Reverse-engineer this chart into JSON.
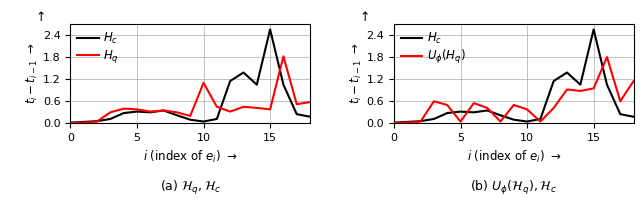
{
  "plot1": {
    "x": [
      0,
      1,
      2,
      3,
      4,
      5,
      6,
      7,
      8,
      9,
      10,
      11,
      12,
      13,
      14,
      15,
      16,
      17,
      18
    ],
    "Hc": [
      0.02,
      0.04,
      0.06,
      0.12,
      0.28,
      0.32,
      0.3,
      0.35,
      0.22,
      0.1,
      0.05,
      0.12,
      1.15,
      1.38,
      1.05,
      2.55,
      1.05,
      0.25,
      0.18
    ],
    "Hq": [
      0.01,
      0.02,
      0.05,
      0.3,
      0.4,
      0.38,
      0.32,
      0.35,
      0.3,
      0.2,
      1.1,
      0.45,
      0.32,
      0.45,
      0.42,
      0.38,
      1.82,
      0.52,
      0.58
    ],
    "legend1": "$H_c$",
    "legend2": "$H_q$",
    "xlabel": "$i$ (index of $e_i$) $\\rightarrow$",
    "caption": "(a) $\\mathcal{H}_q, \\mathcal{H}_c$",
    "ylim": [
      0,
      2.7
    ],
    "yticks": [
      0.0,
      0.6,
      1.2,
      1.8,
      2.4
    ],
    "xticks": [
      0,
      5,
      10,
      15
    ]
  },
  "plot2": {
    "x": [
      0,
      1,
      2,
      3,
      4,
      5,
      6,
      7,
      8,
      9,
      10,
      11,
      12,
      13,
      14,
      15,
      16,
      17,
      18
    ],
    "Hc": [
      0.02,
      0.04,
      0.06,
      0.12,
      0.28,
      0.32,
      0.3,
      0.35,
      0.22,
      0.1,
      0.05,
      0.12,
      1.15,
      1.38,
      1.05,
      2.55,
      1.05,
      0.25,
      0.18
    ],
    "Uphi_Hq": [
      0.01,
      0.02,
      0.05,
      0.6,
      0.5,
      0.05,
      0.55,
      0.42,
      0.05,
      0.5,
      0.38,
      0.05,
      0.42,
      0.92,
      0.88,
      0.95,
      1.8,
      0.6,
      1.15
    ],
    "legend1": "$H_c$",
    "legend2": "$U_\\phi(H_q)$",
    "xlabel": "$i$ (index of $e_i$) $\\rightarrow$",
    "caption": "(b) $U_\\phi(\\mathcal{H}_q), \\mathcal{H}_c$",
    "ylim": [
      0,
      2.7
    ],
    "yticks": [
      0.0,
      0.6,
      1.2,
      1.8,
      2.4
    ],
    "xticks": [
      0,
      5,
      10,
      15
    ]
  },
  "line_colors": {
    "Hc": "black",
    "Hq": "red"
  },
  "line_width": 1.5,
  "figsize": [
    6.4,
    1.99
  ],
  "dpi": 100,
  "ylabel_arrow": "$\\uparrow$",
  "ylabel_text": "$t_i - t_{i-1}$"
}
